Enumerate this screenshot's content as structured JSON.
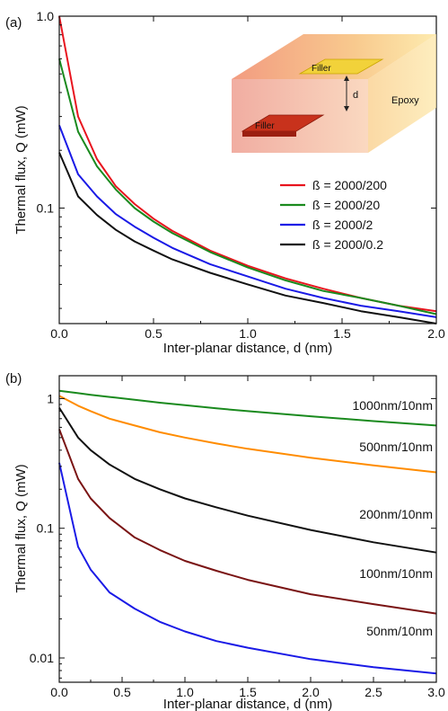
{
  "chart_data": [
    {
      "type": "line",
      "panel_label": "(a)",
      "xlabel": "Inter-planar distance, d (nm)",
      "ylabel": "Thermal flux, Q (mW)",
      "xlim": [
        0,
        2.0
      ],
      "ylim": [
        0.025,
        1.0
      ],
      "yscale": "log",
      "x_ticks": [
        0.0,
        0.5,
        1.0,
        1.5,
        2.0
      ],
      "x_tick_labels": [
        "0.0",
        "0.5",
        "1.0",
        "1.5",
        "2.0"
      ],
      "y_ticks": [
        0.1,
        1.0
      ],
      "y_tick_labels": [
        "0.1",
        "1.0"
      ],
      "legend_position": "middle-right",
      "x": [
        0,
        0.1,
        0.2,
        0.3,
        0.4,
        0.5,
        0.6,
        0.8,
        1.0,
        1.2,
        1.4,
        1.6,
        1.8,
        2.0
      ],
      "series": [
        {
          "name": "ß = 2000/200",
          "color": "#e8141e",
          "values": [
            1.0,
            0.3,
            0.18,
            0.13,
            0.105,
            0.088,
            0.076,
            0.06,
            0.05,
            0.043,
            0.038,
            0.034,
            0.031,
            0.029
          ]
        },
        {
          "name": "ß = 2000/20",
          "color": "#1a8a1e",
          "values": [
            0.6,
            0.25,
            0.165,
            0.125,
            0.1,
            0.085,
            0.074,
            0.059,
            0.049,
            0.042,
            0.037,
            0.034,
            0.031,
            0.028
          ]
        },
        {
          "name": "ß = 2000/2",
          "color": "#1a1ae6",
          "values": [
            0.27,
            0.15,
            0.115,
            0.093,
            0.08,
            0.07,
            0.062,
            0.051,
            0.044,
            0.038,
            0.034,
            0.031,
            0.029,
            0.027
          ]
        },
        {
          "name": "ß = 2000/0.2",
          "color": "#111111",
          "values": [
            0.195,
            0.115,
            0.092,
            0.077,
            0.067,
            0.06,
            0.054,
            0.046,
            0.04,
            0.035,
            0.032,
            0.029,
            0.027,
            0.025
          ]
        }
      ],
      "inset": {
        "labels": [
          "Filler",
          "Filler",
          "d",
          "Epoxy"
        ]
      }
    },
    {
      "type": "line",
      "panel_label": "(b)",
      "xlabel": "Inter-planar distance, d (nm)",
      "ylabel": "Thermal flux, Q (mW)",
      "xlim": [
        0,
        3.0
      ],
      "ylim": [
        0.0065,
        1.5
      ],
      "yscale": "log",
      "x_ticks": [
        0.0,
        0.5,
        1.0,
        1.5,
        2.0,
        2.5,
        3.0
      ],
      "x_tick_labels": [
        "0.0",
        "0.5",
        "1.0",
        "1.5",
        "2.0",
        "2.5",
        "3.0"
      ],
      "y_ticks": [
        0.01,
        0.1,
        1
      ],
      "y_tick_labels": [
        "0.01",
        "0.1",
        "1"
      ],
      "x": [
        0,
        0.15,
        0.25,
        0.4,
        0.6,
        0.8,
        1.0,
        1.25,
        1.5,
        2.0,
        2.5,
        3.0
      ],
      "series": [
        {
          "name": "1000nm/10nm",
          "color": "#1a8a1e",
          "values": [
            1.15,
            1.1,
            1.07,
            1.03,
            0.98,
            0.93,
            0.89,
            0.84,
            0.8,
            0.73,
            0.67,
            0.62
          ]
        },
        {
          "name": "500nm/10nm",
          "color": "#ff8c00",
          "values": [
            1.05,
            0.88,
            0.8,
            0.7,
            0.62,
            0.55,
            0.5,
            0.45,
            0.41,
            0.35,
            0.305,
            0.27
          ]
        },
        {
          "name": "200nm/10nm",
          "color": "#111111",
          "values": [
            0.85,
            0.5,
            0.4,
            0.31,
            0.24,
            0.2,
            0.17,
            0.145,
            0.125,
            0.097,
            0.078,
            0.065
          ]
        },
        {
          "name": "100nm/10nm",
          "color": "#7a1414",
          "values": [
            0.58,
            0.24,
            0.17,
            0.12,
            0.085,
            0.068,
            0.056,
            0.047,
            0.04,
            0.031,
            0.026,
            0.022
          ]
        },
        {
          "name": "50nm/10nm",
          "color": "#1a1ae6",
          "values": [
            0.32,
            0.072,
            0.048,
            0.032,
            0.024,
            0.019,
            0.016,
            0.0135,
            0.012,
            0.0098,
            0.0085,
            0.0076
          ]
        }
      ]
    }
  ]
}
